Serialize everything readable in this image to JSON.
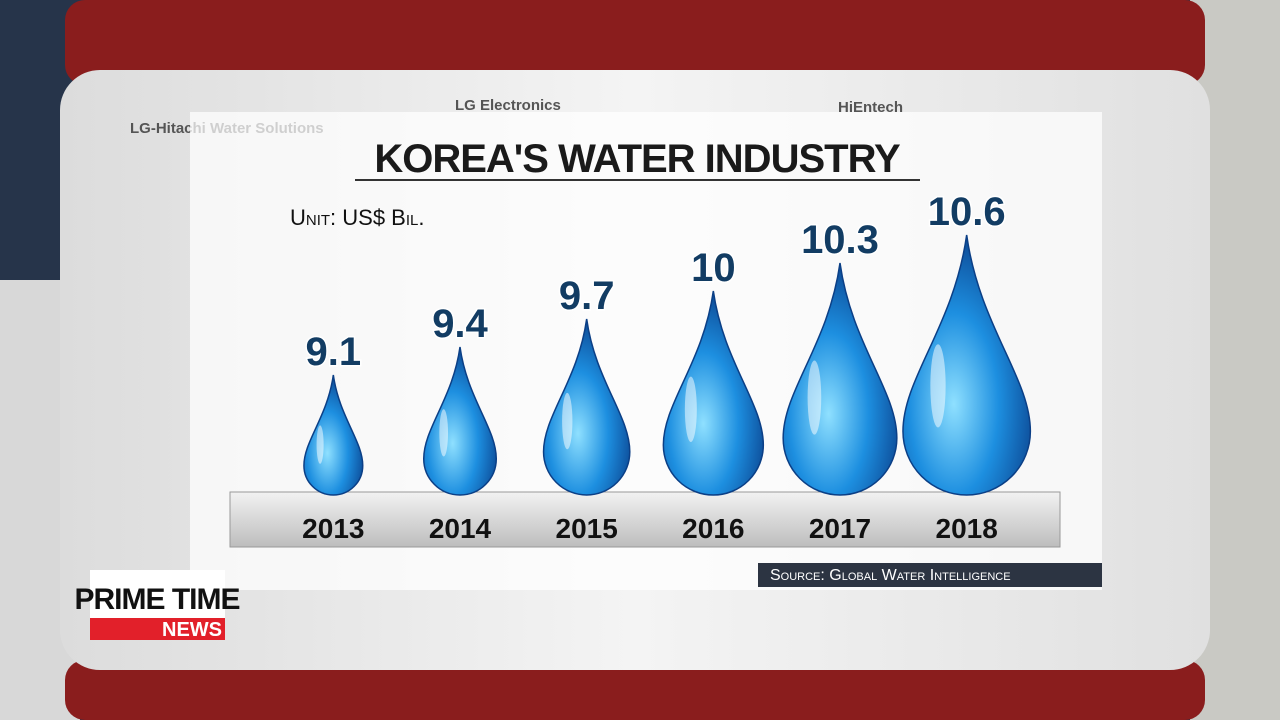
{
  "chart_data": {
    "type": "drop",
    "title": "KOREA'S WATER INDUSTRY",
    "unit": "Unit: US$ Bil.",
    "source": "Source: Global Water Intelligence",
    "categories": [
      "2013",
      "2014",
      "2015",
      "2016",
      "2017",
      "2018"
    ],
    "values": [
      9.1,
      9.4,
      9.7,
      10,
      10.3,
      10.6
    ],
    "color": "#1d8fe0"
  },
  "background_signs": [
    "LG-Hitachi Water Solutions",
    "LG Electronics",
    "HiEntech"
  ],
  "logo": {
    "line1": "PRIME TIME",
    "line2": "NEWS"
  }
}
